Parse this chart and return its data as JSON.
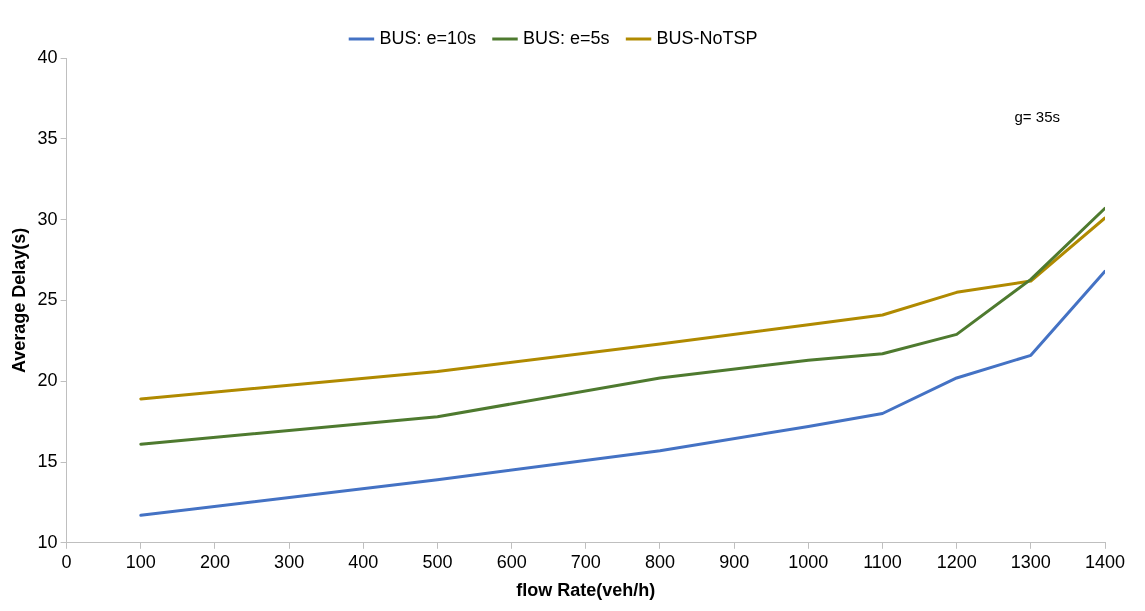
{
  "chart_data": {
    "type": "line",
    "xlabel": "flow Rate(veh/h)",
    "ylabel": "Average Delay(s)",
    "x": [
      100,
      500,
      800,
      1000,
      1100,
      1200,
      1300,
      1400
    ],
    "series": [
      {
        "name": "BUS: e=10s",
        "color": "#4472c4",
        "values": [
          11.7,
          13.9,
          15.7,
          17.2,
          18.0,
          20.2,
          21.6,
          26.8
        ]
      },
      {
        "name": "BUS: e=5s",
        "color": "#4e7a2f",
        "values": [
          16.1,
          17.8,
          20.2,
          21.3,
          21.7,
          22.9,
          26.3,
          30.7
        ]
      },
      {
        "name": "BUS-NoTSP",
        "color": "#b08a00",
        "values": [
          18.9,
          20.6,
          22.3,
          23.5,
          24.1,
          25.5,
          26.2,
          30.1
        ]
      }
    ],
    "xlim": [
      0,
      1400
    ],
    "xticks": [
      0,
      100,
      200,
      300,
      400,
      500,
      600,
      700,
      800,
      900,
      1000,
      1100,
      1200,
      1300,
      1400
    ],
    "ylim": [
      10,
      40
    ],
    "yticks": [
      10,
      15,
      20,
      25,
      30,
      35,
      40
    ],
    "grid": false,
    "legend": "top",
    "marker": "none",
    "line_style": "solid",
    "annotations": [
      "g= 35s"
    ]
  }
}
